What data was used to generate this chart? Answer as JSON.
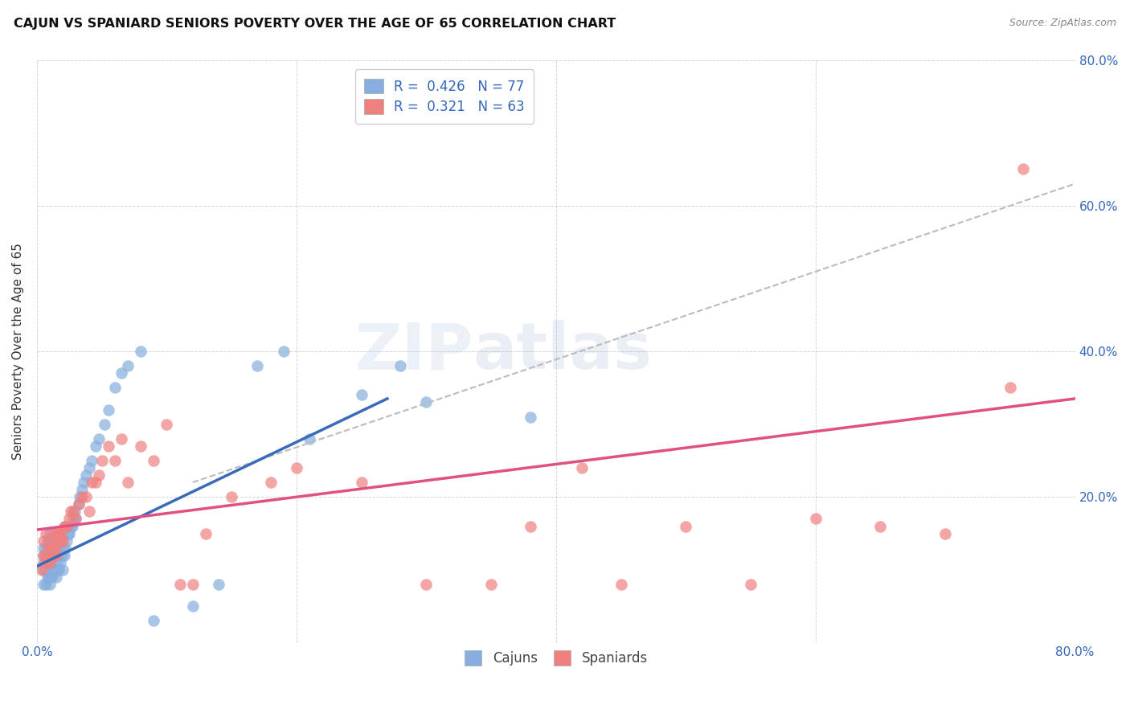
{
  "title": "CAJUN VS SPANIARD SENIORS POVERTY OVER THE AGE OF 65 CORRELATION CHART",
  "source": "Source: ZipAtlas.com",
  "ylabel": "Seniors Poverty Over the Age of 65",
  "xlim": [
    0,
    0.8
  ],
  "ylim": [
    0,
    0.8
  ],
  "xtick_labels": [
    "0.0%",
    "",
    "",
    "",
    "80.0%"
  ],
  "xtick_vals": [
    0.0,
    0.2,
    0.4,
    0.6,
    0.8
  ],
  "right_ytick_labels": [
    "20.0%",
    "40.0%",
    "60.0%",
    "80.0%"
  ],
  "right_ytick_vals": [
    0.2,
    0.4,
    0.6,
    0.8
  ],
  "cajun_R": 0.426,
  "cajun_N": 77,
  "spaniard_R": 0.321,
  "spaniard_N": 63,
  "cajun_color": "#87AEDE",
  "spaniard_color": "#F08080",
  "cajun_line_color": "#3A6BBB",
  "spaniard_line_color": "#E05080",
  "trendline_color": "#BBBBBB",
  "background_color": "#FFFFFF",
  "grid_color": "#CCCCCC",
  "watermark_zip": "ZIP",
  "watermark_atlas": "atlas",
  "cajun_x": [
    0.005,
    0.005,
    0.005,
    0.005,
    0.005,
    0.007,
    0.007,
    0.007,
    0.008,
    0.008,
    0.008,
    0.009,
    0.009,
    0.009,
    0.01,
    0.01,
    0.01,
    0.01,
    0.01,
    0.01,
    0.01,
    0.012,
    0.012,
    0.013,
    0.013,
    0.013,
    0.014,
    0.014,
    0.015,
    0.015,
    0.015,
    0.016,
    0.016,
    0.017,
    0.017,
    0.018,
    0.018,
    0.019,
    0.02,
    0.02,
    0.02,
    0.021,
    0.022,
    0.022,
    0.023,
    0.024,
    0.025,
    0.026,
    0.027,
    0.028,
    0.029,
    0.03,
    0.032,
    0.033,
    0.035,
    0.036,
    0.038,
    0.04,
    0.042,
    0.045,
    0.048,
    0.052,
    0.055,
    0.06,
    0.065,
    0.07,
    0.08,
    0.09,
    0.12,
    0.14,
    0.17,
    0.19,
    0.21,
    0.25,
    0.28,
    0.3,
    0.38
  ],
  "cajun_y": [
    0.08,
    0.1,
    0.11,
    0.12,
    0.13,
    0.08,
    0.1,
    0.13,
    0.09,
    0.11,
    0.14,
    0.09,
    0.11,
    0.13,
    0.08,
    0.09,
    0.1,
    0.11,
    0.12,
    0.13,
    0.15,
    0.09,
    0.12,
    0.1,
    0.12,
    0.14,
    0.1,
    0.13,
    0.09,
    0.11,
    0.13,
    0.1,
    0.13,
    0.1,
    0.13,
    0.11,
    0.14,
    0.12,
    0.1,
    0.13,
    0.15,
    0.12,
    0.13,
    0.16,
    0.14,
    0.15,
    0.15,
    0.16,
    0.16,
    0.17,
    0.18,
    0.17,
    0.19,
    0.2,
    0.21,
    0.22,
    0.23,
    0.24,
    0.25,
    0.27,
    0.28,
    0.3,
    0.32,
    0.35,
    0.37,
    0.38,
    0.4,
    0.03,
    0.05,
    0.08,
    0.38,
    0.4,
    0.28,
    0.34,
    0.38,
    0.33,
    0.31
  ],
  "spaniard_x": [
    0.004,
    0.005,
    0.005,
    0.006,
    0.007,
    0.007,
    0.008,
    0.009,
    0.01,
    0.01,
    0.011,
    0.012,
    0.013,
    0.013,
    0.014,
    0.015,
    0.015,
    0.016,
    0.017,
    0.018,
    0.019,
    0.02,
    0.021,
    0.022,
    0.023,
    0.025,
    0.026,
    0.028,
    0.03,
    0.032,
    0.035,
    0.038,
    0.04,
    0.042,
    0.045,
    0.048,
    0.05,
    0.055,
    0.06,
    0.065,
    0.07,
    0.08,
    0.09,
    0.1,
    0.11,
    0.12,
    0.13,
    0.15,
    0.18,
    0.2,
    0.25,
    0.3,
    0.35,
    0.38,
    0.42,
    0.45,
    0.5,
    0.55,
    0.6,
    0.65,
    0.7,
    0.75,
    0.76
  ],
  "spaniard_y": [
    0.1,
    0.12,
    0.14,
    0.11,
    0.12,
    0.15,
    0.11,
    0.13,
    0.11,
    0.14,
    0.12,
    0.13,
    0.12,
    0.15,
    0.13,
    0.12,
    0.15,
    0.14,
    0.15,
    0.15,
    0.14,
    0.14,
    0.16,
    0.16,
    0.16,
    0.17,
    0.18,
    0.18,
    0.17,
    0.19,
    0.2,
    0.2,
    0.18,
    0.22,
    0.22,
    0.23,
    0.25,
    0.27,
    0.25,
    0.28,
    0.22,
    0.27,
    0.25,
    0.3,
    0.08,
    0.08,
    0.15,
    0.2,
    0.22,
    0.24,
    0.22,
    0.08,
    0.08,
    0.16,
    0.24,
    0.08,
    0.16,
    0.08,
    0.17,
    0.16,
    0.15,
    0.35,
    0.65
  ],
  "cajun_line_x": [
    0.0,
    0.27
  ],
  "cajun_line_y": [
    0.105,
    0.335
  ],
  "spaniard_line_x": [
    0.0,
    0.8
  ],
  "spaniard_line_y": [
    0.155,
    0.335
  ],
  "dash_line_x": [
    0.12,
    0.8
  ],
  "dash_line_y": [
    0.22,
    0.63
  ]
}
